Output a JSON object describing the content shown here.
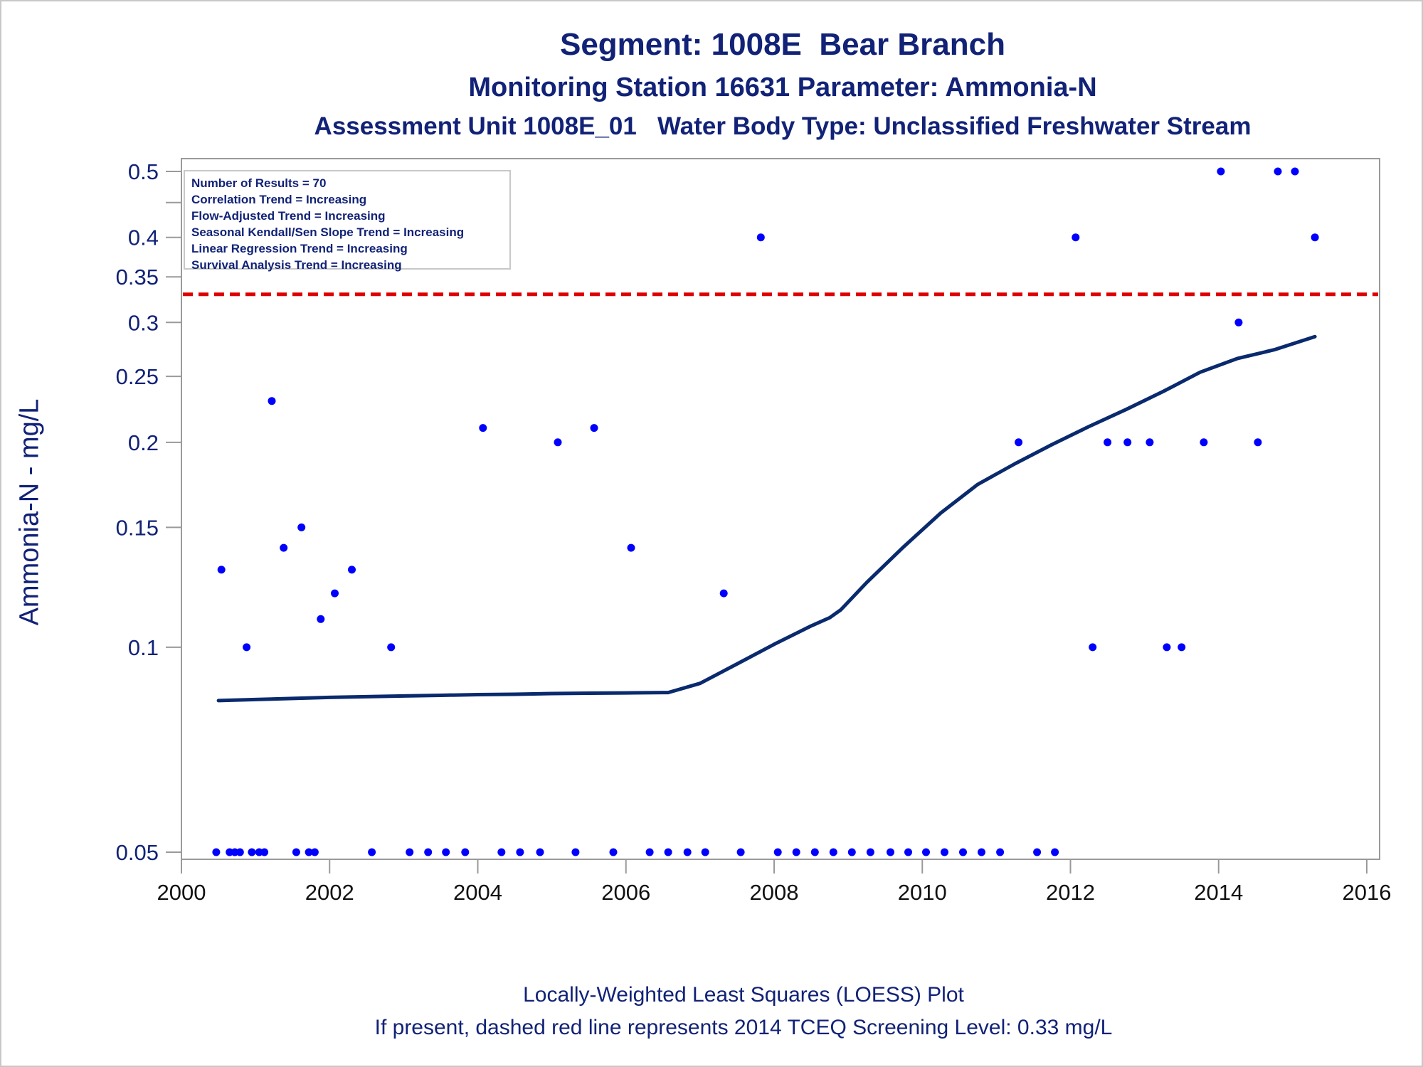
{
  "title": "Segment: 1008E  Bear Branch",
  "subtitle1": "Monitoring Station 16631 Parameter: Ammonia-N",
  "subtitle2": "Assessment Unit 1008E_01   Water Body Type: Unclassified Freshwater Stream",
  "footer1": "Locally-Weighted Least Squares (LOESS) Plot",
  "footer2": "If present, dashed red line represents 2014 TCEQ Screening Level: 0.33 mg/L",
  "stats": {
    "line1": "Number of Results = 70",
    "line2": "Correlation Trend = Increasing",
    "line3": "Flow-Adjusted Trend = Increasing",
    "line4": "Seasonal Kendall/Sen Slope Trend = Increasing",
    "line5": "Linear Regression Trend = Increasing",
    "line6": "Survival Analysis Trend = Increasing"
  },
  "chart_data": {
    "type": "scatter",
    "ylabel": "Ammonia-N - mg/L",
    "xlabel": "",
    "x_scale": "linear",
    "y_scale": "log",
    "xlim": [
      2000,
      2016
    ],
    "ylim": [
      0.05,
      0.5
    ],
    "x_ticks": [
      "2000",
      "2002",
      "2004",
      "2006",
      "2008",
      "2010",
      "2012",
      "2014",
      "2016"
    ],
    "y_ticks": [
      "0.05",
      "0.1",
      "0.15",
      "0.2",
      "0.25",
      "0.3",
      "0.35",
      "0.4",
      "0.5"
    ],
    "grid": false,
    "colors": {
      "points": "#0000ff",
      "loess": "#0a2a6e",
      "screening": "#dd0000",
      "text": "#112277",
      "axis": "#9a9a9a"
    },
    "screening_level": 0.33,
    "series": [
      {
        "name": "",
        "kind": "points",
        "x": [
          2000.47,
          2000.54,
          2000.65,
          2000.72,
          2000.79,
          2000.88,
          2000.95,
          2001.05,
          2001.12,
          2001.22,
          2001.38,
          2001.55,
          2001.62,
          2001.72,
          2001.8,
          2001.88,
          2002.07,
          2002.3,
          2002.57,
          2002.83,
          2003.08,
          2003.33,
          2003.57,
          2003.83,
          2004.07,
          2004.32,
          2004.57,
          2004.84,
          2005.08,
          2005.32,
          2005.57,
          2005.83,
          2006.07,
          2006.32,
          2006.57,
          2006.83,
          2007.07,
          2007.32,
          2007.55,
          2007.82,
          2008.05,
          2008.3,
          2008.55,
          2008.8,
          2009.05,
          2009.3,
          2009.57,
          2009.81,
          2010.05,
          2010.3,
          2010.55,
          2010.8,
          2011.05,
          2011.3,
          2011.55,
          2011.79,
          2012.07,
          2012.3,
          2012.5,
          2012.77,
          2013.07,
          2013.3,
          2013.5,
          2013.8,
          2014.03,
          2014.27,
          2014.53,
          2014.8,
          2015.03,
          2015.3
        ],
        "y": [
          0.05,
          0.13,
          0.05,
          0.05,
          0.05,
          0.1,
          0.05,
          0.05,
          0.05,
          0.23,
          0.14,
          0.05,
          0.15,
          0.05,
          0.05,
          0.11,
          0.12,
          0.13,
          0.05,
          0.1,
          0.05,
          0.05,
          0.05,
          0.05,
          0.21,
          0.05,
          0.05,
          0.05,
          0.2,
          0.05,
          0.21,
          0.05,
          0.14,
          0.05,
          0.05,
          0.05,
          0.05,
          0.12,
          0.05,
          0.4,
          0.05,
          0.05,
          0.05,
          0.05,
          0.05,
          0.05,
          0.05,
          0.05,
          0.05,
          0.05,
          0.05,
          0.05,
          0.05,
          0.2,
          0.05,
          0.05,
          0.4,
          0.1,
          0.2,
          0.2,
          0.2,
          0.1,
          0.1,
          0.2,
          0.5,
          0.3,
          0.2,
          0.5,
          0.5,
          0.4
        ]
      },
      {
        "name": "",
        "kind": "loess",
        "x": [
          2000.5,
          2001.0,
          2001.5,
          2002.0,
          2002.5,
          2003.0,
          2003.5,
          2004.0,
          2004.5,
          2005.0,
          2005.5,
          2006.0,
          2006.5,
          2006.57,
          2007.0,
          2007.5,
          2008.0,
          2008.5,
          2008.75,
          2008.9,
          2009.25,
          2009.75,
          2010.25,
          2010.75,
          2011.25,
          2011.75,
          2012.25,
          2012.75,
          2013.25,
          2013.75,
          2014.25,
          2014.75,
          2015.3
        ],
        "y": [
          0.0835,
          0.0838,
          0.0841,
          0.0844,
          0.0846,
          0.0848,
          0.085,
          0.0852,
          0.0853,
          0.0855,
          0.0856,
          0.0857,
          0.0858,
          0.0858,
          0.0885,
          0.0945,
          0.101,
          0.1075,
          0.1105,
          0.1135,
          0.1245,
          0.1405,
          0.1575,
          0.1735,
          0.186,
          0.1985,
          0.211,
          0.2235,
          0.2375,
          0.2535,
          0.2655,
          0.2735,
          0.286
        ]
      }
    ]
  }
}
